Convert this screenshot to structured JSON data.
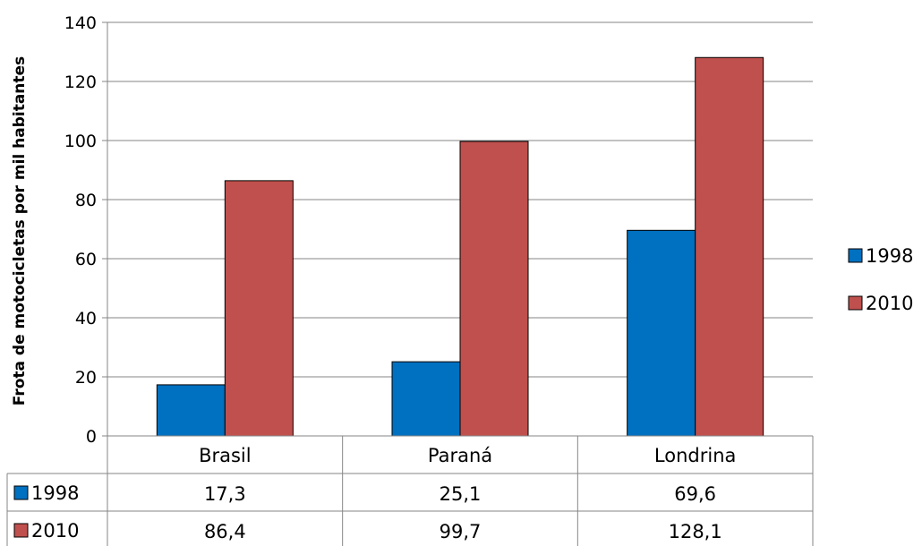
{
  "chart_data": {
    "type": "bar",
    "categories": [
      "Brasil",
      "Paraná",
      "Londrina"
    ],
    "series": [
      {
        "name": "1998",
        "values": [
          17.3,
          25.1,
          69.6
        ],
        "labels": [
          "17,3",
          "25,1",
          "69,6"
        ],
        "color": "#0070C0"
      },
      {
        "name": "2010",
        "values": [
          86.4,
          99.7,
          128.1
        ],
        "labels": [
          "86,4",
          "99,7",
          "128,1"
        ],
        "color": "#C0504D"
      }
    ],
    "ylabel": "Frota de motocicletas por mil habitantes",
    "ylim": [
      0,
      140
    ],
    "yticks": [
      0,
      20,
      40,
      60,
      80,
      100,
      120,
      140
    ],
    "grid": true,
    "legend": "right",
    "data_table": true
  }
}
